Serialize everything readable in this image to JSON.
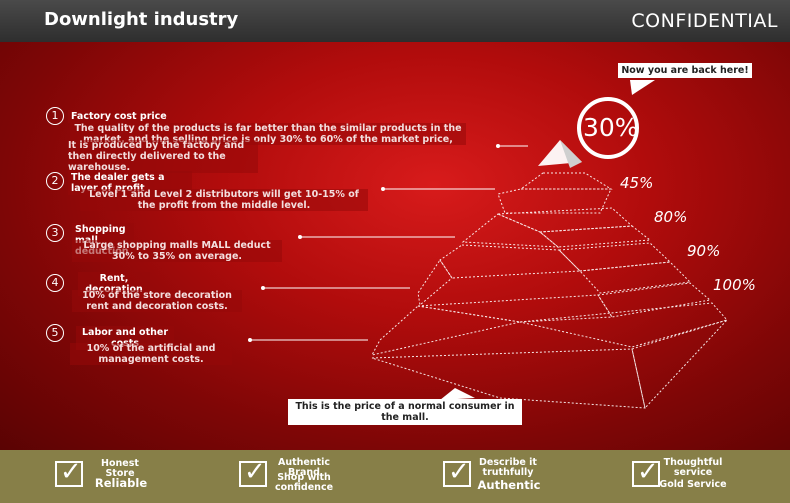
{
  "header": {
    "title": "Downlight industry",
    "confidential": "CONFIDENTIAL"
  },
  "top_callout": "Now you are back here!",
  "bottom_callout": "This is the price of a normal consumer in the mall.",
  "pyramid": {
    "top_percent": "30%",
    "levels": [
      "45%",
      "80%",
      "90%",
      "100%"
    ]
  },
  "steps": [
    {
      "number": "1",
      "label": "Factory cost price",
      "desc_a": "The quality of the products is far better than the similar products in the market, and the selling price is only 30% to 60% of the market price,",
      "desc_b": "It is produced by the factory and then directly delivered to the warehouse."
    },
    {
      "number": "2",
      "label": "The dealer gets a layer of profit",
      "desc_a": "Level 1 and Level 2 distributors will get 10-15% of the profit from the middle level."
    },
    {
      "number": "3",
      "label": "Shopping mall deduction",
      "desc_a": "Large shopping malls MALL deduct 30% to 35% on average."
    },
    {
      "number": "4",
      "label": "Rent, decoration",
      "desc_a": "10% of the store decoration rent and decoration costs."
    },
    {
      "number": "5",
      "label": "Labor and other costs",
      "desc_a": "10% of the artificial and management costs."
    }
  ],
  "footer": [
    {
      "small": "Honest Store",
      "big": "Reliable"
    },
    {
      "small": "Authentic Brand",
      "big": "Shop with confidence"
    },
    {
      "small": "Describe it truthfully",
      "big": "Authentic"
    },
    {
      "small": "Thoughtful service",
      "big": "Gold Service"
    }
  ]
}
